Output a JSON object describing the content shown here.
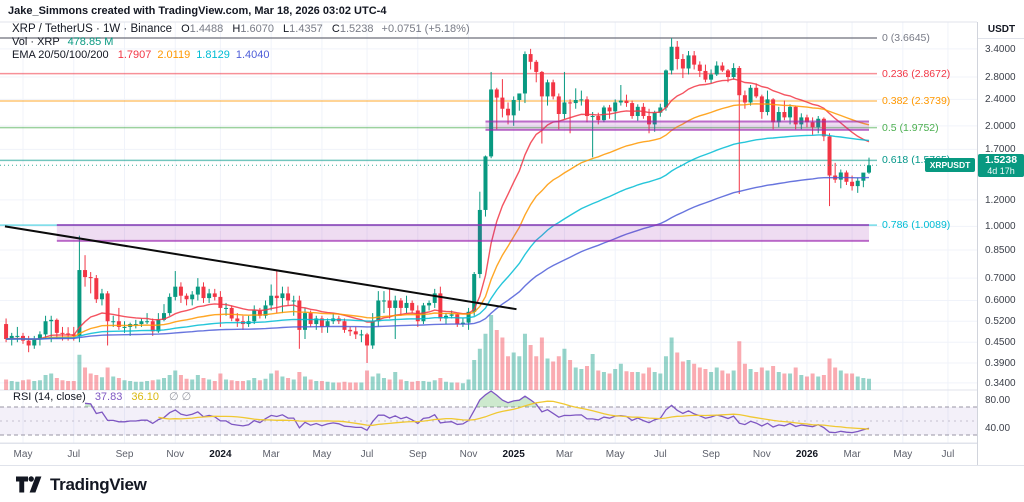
{
  "attribution": "Jake_Simmons created with TradingView.com, Mar 18, 2026 03:02 UTC-4",
  "legend": {
    "symbol": "XRP / TetherUS · 1W · Binance",
    "o_k": "O",
    "o_v": "1.4488",
    "h_k": "H",
    "h_v": "1.6070",
    "l_k": "L",
    "l_v": "1.4357",
    "c_k": "C",
    "c_v": "1.5238",
    "change": "+0.0751 (+5.18%)",
    "vol_label": "Vol · XRP",
    "vol_value": "478.85 M",
    "ema_label": "EMA 20/50/100/200"
  },
  "rsi_legend": {
    "label": "RSI (14, close)",
    "value": "37.83",
    "ma_value": "36.10",
    "empty": "∅ ∅"
  },
  "axis": {
    "currency": "USDT",
    "price_ticks": [
      "3.4000",
      "2.8000",
      "2.4000",
      "2.0000",
      "1.7000",
      "1.2000",
      "1.0000",
      "0.8500",
      "0.7000",
      "0.6000",
      "0.5200",
      "0.4500",
      "0.3900",
      "0.3400"
    ],
    "rsi_ticks": [
      "80.00",
      "40.00"
    ]
  },
  "price_tag": {
    "symbol": "XRPUSDT",
    "price": "1.5238",
    "countdown": "4d 17h",
    "color": "#089981"
  },
  "footer": {
    "brand": "TradingView"
  },
  "chart_data": {
    "type": "candlestick",
    "symbol": "XRPUSDT",
    "interval": "1W",
    "scale": "log",
    "first_week": -3,
    "start_label": "2023-04-10",
    "last_price": 1.5238,
    "colors": {
      "up": "#089981",
      "down": "#f23645",
      "grid": "#f0f3fa",
      "separator": "#e0e3eb",
      "rsi_line": "#7e57c2",
      "rsi_ma": "#f0c832",
      "rsi_band": "rgba(126,87,194,0.09)",
      "overbought_fill": "rgba(76,175,80,0.28)",
      "zone": "#9c27b0",
      "zone_fill": "rgba(156,39,176,0.16)",
      "trendline": "#0b0b0b"
    },
    "emas": [
      {
        "period": 20,
        "color": "#f23645",
        "value": "1.7907"
      },
      {
        "period": 50,
        "color": "#ff9800",
        "value": "2.0119"
      },
      {
        "period": 100,
        "color": "#00bcd4",
        "value": "1.8129"
      },
      {
        "period": 200,
        "color": "#4d5dd8",
        "value": "1.4040"
      }
    ],
    "rsi": {
      "period": 14,
      "ma_period": 14,
      "upper": 70,
      "middle": 50,
      "lower": 30
    },
    "fib_levels": [
      {
        "label": "0 (3.6645)",
        "price": 3.6645,
        "color": "#787b86"
      },
      {
        "label": "0.236 (2.8672)",
        "price": 2.8672,
        "color": "#f23645"
      },
      {
        "label": "0.382 (2.3739)",
        "price": 2.3739,
        "color": "#ff9800"
      },
      {
        "label": "0.5 (1.9752)",
        "price": 1.9752,
        "color": "#4caf50"
      },
      {
        "label": "0.618 (1.5765)",
        "price": 1.5765,
        "color": "#009688"
      },
      {
        "label": "0.786 (1.0089)",
        "price": 1.0089,
        "color": "#00bcd4"
      }
    ],
    "zones": [
      {
        "from_week": 6,
        "to_week": 150,
        "price_top": 1.01,
        "price_bottom": 0.905
      },
      {
        "from_week": 82,
        "to_week": 150,
        "price_top": 2.06,
        "price_bottom": 1.945
      }
    ],
    "trendline": {
      "from_week": -3.2,
      "from_price": 1.0,
      "to_week": 87.5,
      "to_price": 0.565
    },
    "time_ticks": [
      {
        "label": "May",
        "week": 0
      },
      {
        "label": "Jul",
        "week": 9
      },
      {
        "label": "Sep",
        "week": 18
      },
      {
        "label": "Nov",
        "week": 27
      },
      {
        "label": "2024",
        "week": 35,
        "year": true
      },
      {
        "label": "Mar",
        "week": 44
      },
      {
        "label": "May",
        "week": 53
      },
      {
        "label": "Jul",
        "week": 61
      },
      {
        "label": "Sep",
        "week": 70
      },
      {
        "label": "Nov",
        "week": 79
      },
      {
        "label": "2025",
        "week": 87,
        "year": true
      },
      {
        "label": "Mar",
        "week": 96
      },
      {
        "label": "May",
        "week": 105
      },
      {
        "label": "Jul",
        "week": 113
      },
      {
        "label": "Sep",
        "week": 122
      },
      {
        "label": "Nov",
        "week": 131
      },
      {
        "label": "2026",
        "week": 139,
        "year": true
      },
      {
        "label": "Mar",
        "week": 147
      },
      {
        "label": "May",
        "week": 156
      },
      {
        "label": "Jul",
        "week": 164
      }
    ],
    "candles": [
      [
        0.51,
        0.53,
        0.45,
        0.46,
        14
      ],
      [
        0.46,
        0.48,
        0.44,
        0.47,
        12
      ],
      [
        0.47,
        0.5,
        0.45,
        0.47,
        11
      ],
      [
        0.47,
        0.48,
        0.445,
        0.455,
        13
      ],
      [
        0.455,
        0.47,
        0.42,
        0.44,
        14
      ],
      [
        0.44,
        0.47,
        0.43,
        0.46,
        12
      ],
      [
        0.46,
        0.485,
        0.44,
        0.475,
        13
      ],
      [
        0.475,
        0.54,
        0.46,
        0.52,
        20
      ],
      [
        0.52,
        0.54,
        0.45,
        0.525,
        22
      ],
      [
        0.525,
        0.53,
        0.46,
        0.48,
        16
      ],
      [
        0.48,
        0.5,
        0.455,
        0.478,
        13
      ],
      [
        0.478,
        0.499,
        0.455,
        0.475,
        12
      ],
      [
        0.475,
        0.5,
        0.455,
        0.47,
        12
      ],
      [
        0.47,
        0.938,
        0.45,
        0.74,
        47
      ],
      [
        0.74,
        0.82,
        0.66,
        0.705,
        30
      ],
      [
        0.705,
        0.73,
        0.63,
        0.7,
        22
      ],
      [
        0.7,
        0.715,
        0.59,
        0.605,
        20
      ],
      [
        0.605,
        0.65,
        0.58,
        0.63,
        17
      ],
      [
        0.63,
        0.64,
        0.44,
        0.52,
        30
      ],
      [
        0.52,
        0.54,
        0.5,
        0.52,
        18
      ],
      [
        0.52,
        0.57,
        0.49,
        0.5,
        16
      ],
      [
        0.5,
        0.52,
        0.48,
        0.5,
        13
      ],
      [
        0.5,
        0.515,
        0.47,
        0.51,
        12
      ],
      [
        0.51,
        0.525,
        0.495,
        0.51,
        11
      ],
      [
        0.51,
        0.53,
        0.5,
        0.52,
        11
      ],
      [
        0.52,
        0.55,
        0.51,
        0.52,
        12
      ],
      [
        0.52,
        0.53,
        0.47,
        0.485,
        13
      ],
      [
        0.485,
        0.55,
        0.48,
        0.525,
        14
      ],
      [
        0.525,
        0.585,
        0.52,
        0.55,
        16
      ],
      [
        0.55,
        0.63,
        0.54,
        0.615,
        20
      ],
      [
        0.615,
        0.735,
        0.6,
        0.66,
        26
      ],
      [
        0.66,
        0.68,
        0.59,
        0.62,
        20
      ],
      [
        0.62,
        0.63,
        0.58,
        0.605,
        15
      ],
      [
        0.605,
        0.64,
        0.58,
        0.625,
        14
      ],
      [
        0.625,
        0.7,
        0.6,
        0.66,
        20
      ],
      [
        0.66,
        0.68,
        0.59,
        0.61,
        16
      ],
      [
        0.61,
        0.65,
        0.59,
        0.63,
        14
      ],
      [
        0.63,
        0.65,
        0.6,
        0.615,
        12
      ],
      [
        0.615,
        0.64,
        0.5,
        0.57,
        22
      ],
      [
        0.57,
        0.59,
        0.54,
        0.57,
        14
      ],
      [
        0.57,
        0.58,
        0.52,
        0.53,
        13
      ],
      [
        0.53,
        0.55,
        0.5,
        0.52,
        12
      ],
      [
        0.52,
        0.54,
        0.49,
        0.51,
        12
      ],
      [
        0.51,
        0.54,
        0.5,
        0.52,
        13
      ],
      [
        0.52,
        0.58,
        0.51,
        0.56,
        16
      ],
      [
        0.56,
        0.57,
        0.53,
        0.54,
        13
      ],
      [
        0.54,
        0.6,
        0.53,
        0.58,
        15
      ],
      [
        0.58,
        0.67,
        0.56,
        0.62,
        22
      ],
      [
        0.62,
        0.74,
        0.55,
        0.61,
        26
      ],
      [
        0.61,
        0.66,
        0.55,
        0.63,
        18
      ],
      [
        0.63,
        0.66,
        0.58,
        0.6,
        16
      ],
      [
        0.6,
        0.62,
        0.54,
        0.6,
        14
      ],
      [
        0.6,
        0.62,
        0.43,
        0.49,
        24
      ],
      [
        0.49,
        0.57,
        0.46,
        0.55,
        18
      ],
      [
        0.55,
        0.56,
        0.5,
        0.51,
        14
      ],
      [
        0.51,
        0.54,
        0.49,
        0.53,
        12
      ],
      [
        0.53,
        0.54,
        0.48,
        0.5,
        12
      ],
      [
        0.5,
        0.53,
        0.48,
        0.52,
        11
      ],
      [
        0.52,
        0.55,
        0.51,
        0.53,
        10
      ],
      [
        0.53,
        0.54,
        0.51,
        0.52,
        10
      ],
      [
        0.52,
        0.53,
        0.48,
        0.49,
        11
      ],
      [
        0.49,
        0.5,
        0.47,
        0.485,
        10
      ],
      [
        0.485,
        0.5,
        0.46,
        0.475,
        10
      ],
      [
        0.475,
        0.49,
        0.45,
        0.475,
        10
      ],
      [
        0.475,
        0.48,
        0.39,
        0.44,
        26
      ],
      [
        0.44,
        0.55,
        0.43,
        0.52,
        18
      ],
      [
        0.52,
        0.64,
        0.5,
        0.6,
        22
      ],
      [
        0.6,
        0.64,
        0.55,
        0.6,
        16
      ],
      [
        0.6,
        0.65,
        0.53,
        0.57,
        14
      ],
      [
        0.57,
        0.62,
        0.46,
        0.6,
        24
      ],
      [
        0.6,
        0.61,
        0.54,
        0.57,
        14
      ],
      [
        0.57,
        0.62,
        0.55,
        0.59,
        12
      ],
      [
        0.59,
        0.6,
        0.55,
        0.56,
        11
      ],
      [
        0.56,
        0.58,
        0.5,
        0.52,
        12
      ],
      [
        0.52,
        0.59,
        0.51,
        0.58,
        12
      ],
      [
        0.58,
        0.6,
        0.56,
        0.59,
        11
      ],
      [
        0.59,
        0.65,
        0.57,
        0.63,
        13
      ],
      [
        0.63,
        0.66,
        0.52,
        0.53,
        16
      ],
      [
        0.53,
        0.55,
        0.51,
        0.54,
        11
      ],
      [
        0.54,
        0.56,
        0.53,
        0.545,
        10
      ],
      [
        0.545,
        0.55,
        0.5,
        0.51,
        10
      ],
      [
        0.51,
        0.53,
        0.5,
        0.515,
        9
      ],
      [
        0.515,
        0.57,
        0.49,
        0.555,
        14
      ],
      [
        0.555,
        0.73,
        0.54,
        0.72,
        40
      ],
      [
        0.72,
        1.27,
        0.7,
        1.12,
        55
      ],
      [
        1.12,
        1.63,
        1.07,
        1.62,
        75
      ],
      [
        1.62,
        2.9,
        1.6,
        2.57,
        100
      ],
      [
        2.57,
        2.6,
        1.95,
        2.43,
        80
      ],
      [
        2.43,
        2.76,
        2.12,
        2.25,
        70
      ],
      [
        2.25,
        2.35,
        2.02,
        2.15,
        45
      ],
      [
        2.15,
        2.45,
        2.0,
        2.39,
        50
      ],
      [
        2.39,
        2.5,
        2.22,
        2.5,
        45
      ],
      [
        2.5,
        3.34,
        2.34,
        3.28,
        75
      ],
      [
        3.28,
        3.4,
        2.95,
        3.11,
        60
      ],
      [
        3.11,
        3.15,
        2.7,
        2.9,
        45
      ],
      [
        2.9,
        2.92,
        1.77,
        2.45,
        70
      ],
      [
        2.45,
        2.75,
        2.3,
        2.7,
        42
      ],
      [
        2.7,
        2.75,
        2.4,
        2.45,
        38
      ],
      [
        2.45,
        2.5,
        1.95,
        2.17,
        45
      ],
      [
        2.17,
        2.9,
        2.1,
        2.35,
        55
      ],
      [
        2.35,
        2.4,
        1.9,
        2.34,
        40
      ],
      [
        2.34,
        2.59,
        2.25,
        2.39,
        30
      ],
      [
        2.39,
        2.55,
        2.3,
        2.4,
        28
      ],
      [
        2.4,
        2.45,
        2.05,
        2.14,
        32
      ],
      [
        2.14,
        2.2,
        1.61,
        2.14,
        48
      ],
      [
        2.14,
        2.19,
        2.02,
        2.08,
        26
      ],
      [
        2.08,
        2.3,
        2.05,
        2.27,
        24
      ],
      [
        2.27,
        2.31,
        2.1,
        2.21,
        22
      ],
      [
        2.21,
        2.4,
        2.08,
        2.35,
        28
      ],
      [
        2.35,
        2.65,
        2.3,
        2.38,
        35
      ],
      [
        2.38,
        2.48,
        2.28,
        2.34,
        25
      ],
      [
        2.34,
        2.38,
        2.1,
        2.14,
        24
      ],
      [
        2.14,
        2.32,
        2.07,
        2.28,
        24
      ],
      [
        2.28,
        2.34,
        2.1,
        2.14,
        22
      ],
      [
        2.14,
        2.25,
        1.9,
        2.02,
        30
      ],
      [
        2.02,
        2.22,
        1.92,
        2.19,
        24
      ],
      [
        2.19,
        2.33,
        2.13,
        2.27,
        22
      ],
      [
        2.27,
        2.95,
        2.22,
        2.93,
        45
      ],
      [
        2.93,
        3.66,
        2.85,
        3.45,
        70
      ],
      [
        3.45,
        3.59,
        2.95,
        3.17,
        50
      ],
      [
        3.17,
        3.28,
        2.78,
        2.97,
        38
      ],
      [
        2.97,
        3.35,
        2.85,
        3.25,
        40
      ],
      [
        3.25,
        3.35,
        2.95,
        3.05,
        35
      ],
      [
        3.05,
        3.12,
        2.8,
        2.92,
        30
      ],
      [
        2.92,
        3.05,
        2.7,
        2.75,
        28
      ],
      [
        2.75,
        2.95,
        2.68,
        2.85,
        24
      ],
      [
        2.85,
        3.12,
        2.82,
        3.03,
        30
      ],
      [
        3.03,
        3.1,
        2.9,
        2.93,
        26
      ],
      [
        2.93,
        2.96,
        2.7,
        2.8,
        22
      ],
      [
        2.8,
        3.08,
        2.75,
        2.98,
        26
      ],
      [
        2.98,
        3.02,
        1.25,
        2.47,
        65
      ],
      [
        2.47,
        2.55,
        2.25,
        2.35,
        35
      ],
      [
        2.35,
        2.65,
        2.3,
        2.6,
        28
      ],
      [
        2.6,
        2.68,
        2.42,
        2.45,
        24
      ],
      [
        2.45,
        2.48,
        2.1,
        2.2,
        30
      ],
      [
        2.2,
        2.55,
        2.15,
        2.4,
        26
      ],
      [
        2.4,
        2.42,
        1.95,
        2.05,
        32
      ],
      [
        2.05,
        2.28,
        1.98,
        2.2,
        24
      ],
      [
        2.2,
        2.38,
        2.08,
        2.12,
        22
      ],
      [
        2.12,
        2.32,
        2.02,
        2.28,
        22
      ],
      [
        2.28,
        2.3,
        1.95,
        2.02,
        30
      ],
      [
        2.02,
        2.18,
        1.95,
        2.12,
        20
      ],
      [
        2.12,
        2.16,
        1.98,
        2.05,
        18
      ],
      [
        2.05,
        2.12,
        1.88,
        1.98,
        22
      ],
      [
        1.98,
        2.14,
        1.9,
        2.1,
        18
      ],
      [
        2.1,
        2.12,
        1.8,
        1.86,
        20
      ],
      [
        1.86,
        1.9,
        1.15,
        1.42,
        42
      ],
      [
        1.42,
        1.55,
        1.35,
        1.38,
        30
      ],
      [
        1.38,
        1.48,
        1.3,
        1.45,
        26
      ],
      [
        1.45,
        1.47,
        1.33,
        1.36,
        22
      ],
      [
        1.36,
        1.42,
        1.28,
        1.32,
        22
      ],
      [
        1.32,
        1.4,
        1.26,
        1.37,
        18
      ],
      [
        1.37,
        1.44,
        1.31,
        1.4488,
        16
      ],
      [
        1.4488,
        1.607,
        1.4357,
        1.5238,
        15
      ]
    ]
  }
}
